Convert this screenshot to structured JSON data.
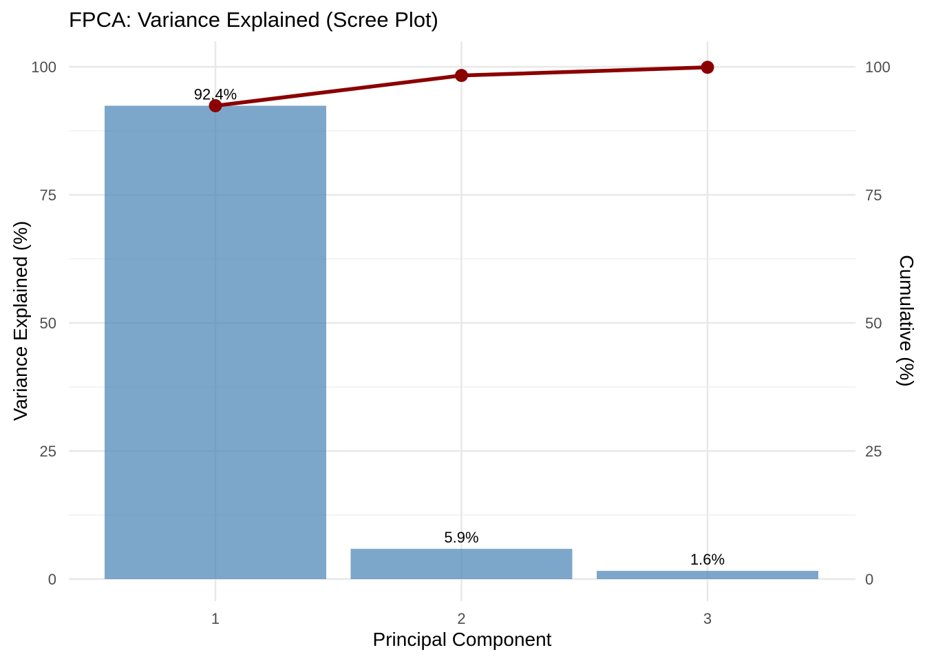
{
  "chart_data": {
    "type": "bar",
    "title": "FPCA: Variance Explained (Scree Plot)",
    "xlabel": "Principal Component",
    "ylabel_left": "Variance Explained (%)",
    "ylabel_right": "Cumulative (%)",
    "categories": [
      "1",
      "2",
      "3"
    ],
    "series": [
      {
        "name": "Variance Explained (%)",
        "type": "bar",
        "values": [
          92.4,
          5.9,
          1.6
        ],
        "point_labels": [
          "92.4%",
          "5.9%",
          "1.6%"
        ]
      },
      {
        "name": "Cumulative (%)",
        "type": "line",
        "values": [
          92.4,
          98.3,
          99.9
        ]
      }
    ],
    "ylim": [
      0,
      100
    ],
    "ytick_labels": [
      "0",
      "25",
      "50",
      "75",
      "100"
    ],
    "ytick_values": [
      0,
      25,
      50,
      75,
      100
    ],
    "ytick_minor_values": [
      12.5,
      37.5,
      62.5,
      87.5
    ],
    "grid": "horizontal major+minor, vertical major at each category",
    "legend": "none",
    "colors": {
      "bar_fill": "#4682B4",
      "bar_fill_opacity": 0.7,
      "bar_fill_effective": "#7DA6CD",
      "line": "#8B0000",
      "grid_major": "#E8E8E8",
      "grid_minor": "#F3F3F3",
      "tick_label": "#4D4D4D",
      "axis_title": "#000000",
      "title": "#000000",
      "bar_label": "#000000",
      "background": "#FFFFFF"
    }
  }
}
